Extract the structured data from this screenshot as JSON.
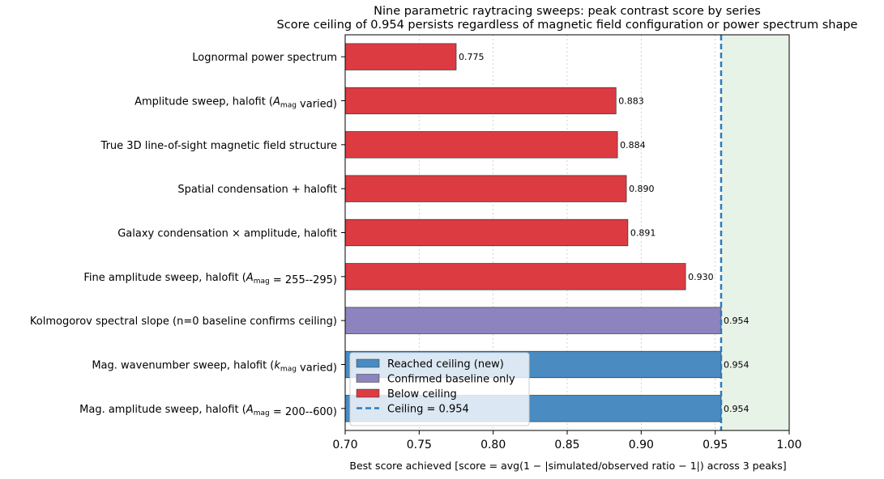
{
  "chart_data": {
    "type": "bar",
    "orientation": "horizontal",
    "title": [
      "Nine parametric raytracing sweeps: peak contrast score by series",
      "Score ceiling of 0.954 persists regardless of magnetic field configuration or power spectrum shape"
    ],
    "xlabel": "Best score achieved  [score = avg(1 − |simulated/observed ratio − 1|) across 3 peaks]",
    "ylabel": "",
    "xlim": [
      0.7,
      1.0
    ],
    "xticks": [
      "0.70",
      "0.75",
      "0.80",
      "0.85",
      "0.90",
      "0.95",
      "1.00"
    ],
    "grid": "vertical dotted",
    "legend_position": "lower-left",
    "ceiling": 0.954,
    "ceiling_region": [
      0.954,
      1.0
    ],
    "categories": [
      {
        "label": "Lognormal power spectrum",
        "value": 0.775,
        "value_label": "0.775",
        "group": "below"
      },
      {
        "label": "Amplitude sweep, halofit (A_mag varied)",
        "value": 0.883,
        "value_label": "0.883",
        "group": "below",
        "parts": [
          {
            "t": "Amplitude sweep, halofit ("
          },
          {
            "t": "A",
            "it": true
          },
          {
            "t": "mag",
            "sub": true
          },
          {
            "t": " varied)"
          }
        ]
      },
      {
        "label": "True 3D line-of-sight magnetic field structure",
        "value": 0.884,
        "value_label": "0.884",
        "group": "below"
      },
      {
        "label": "Spatial condensation + halofit",
        "value": 0.89,
        "value_label": "0.890",
        "group": "below"
      },
      {
        "label": "Galaxy condensation × amplitude, halofit",
        "value": 0.891,
        "value_label": "0.891",
        "group": "below"
      },
      {
        "label": "Fine amplitude sweep, halofit (A_mag = 255--295)",
        "value": 0.93,
        "value_label": "0.930",
        "group": "below",
        "parts": [
          {
            "t": "Fine amplitude sweep, halofit ("
          },
          {
            "t": "A",
            "it": true
          },
          {
            "t": "mag",
            "sub": true
          },
          {
            "t": " = 255--295)"
          }
        ]
      },
      {
        "label": "Kolmogorov spectral slope (n=0 baseline confirms ceiling)",
        "value": 0.954,
        "value_label": "0.954",
        "group": "baseline"
      },
      {
        "label": "Mag. wavenumber sweep, halofit (k_mag varied)",
        "value": 0.954,
        "value_label": "0.954",
        "group": "reached",
        "parts": [
          {
            "t": "Mag. wavenumber sweep, halofit ("
          },
          {
            "t": "k",
            "it": true
          },
          {
            "t": "mag",
            "sub": true
          },
          {
            "t": " varied)"
          }
        ]
      },
      {
        "label": "Mag. amplitude sweep, halofit (A_mag = 200--600)",
        "value": 0.954,
        "value_label": "0.954",
        "group": "reached",
        "parts": [
          {
            "t": "Mag. amplitude sweep, halofit ("
          },
          {
            "t": "A",
            "it": true
          },
          {
            "t": "mag",
            "sub": true
          },
          {
            "t": " = 200--600)"
          }
        ]
      }
    ],
    "legend": [
      {
        "key": "reached",
        "label": "Reached ceiling (new)",
        "color": "#4a8bc2",
        "kind": "patch"
      },
      {
        "key": "baseline",
        "label": "Confirmed baseline only",
        "color": "#8c83bf",
        "kind": "patch"
      },
      {
        "key": "below",
        "label": "Below ceiling",
        "color": "#dc3b42",
        "kind": "patch"
      },
      {
        "key": "ceiling",
        "label": "Ceiling = 0.954",
        "color": "#2b7bbf",
        "kind": "dashed-line"
      }
    ],
    "colors": {
      "reached": "#4a8bc2",
      "baseline": "#8c83bf",
      "below": "#dc3b42",
      "ceiling_line": "#2b7bbf",
      "ceiling_region": "#e8f3e8",
      "bar_edge": "#333333"
    }
  }
}
